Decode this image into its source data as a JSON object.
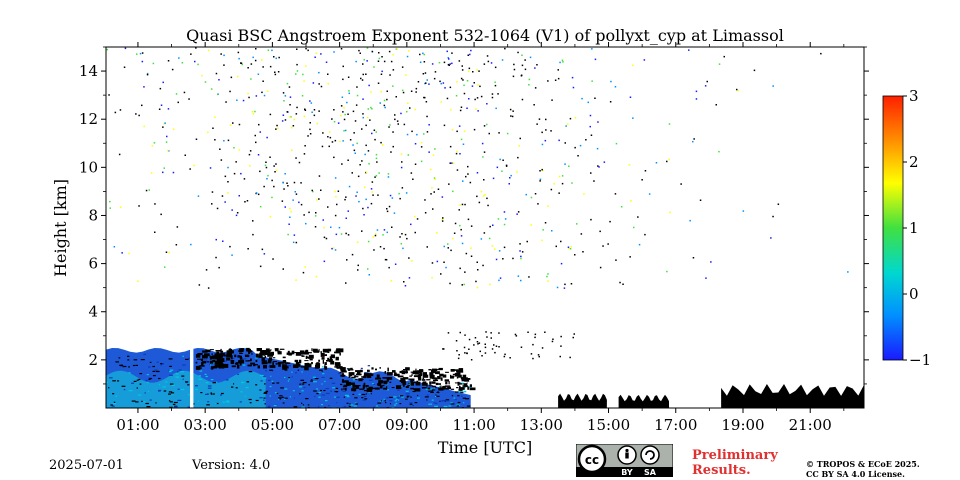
{
  "chart_data": {
    "type": "heatmap",
    "title": "Quasi BSC Angstroem Exponent 532-1064 (V1) of pollyxt_cyp at Limassol",
    "xlabel": "Time [UTC]",
    "ylabel": "Height [km]",
    "xlim_hours": [
      0.05,
      22.6
    ],
    "ylim_km": [
      0,
      15
    ],
    "x_ticks": [
      "01:00",
      "03:00",
      "05:00",
      "07:00",
      "09:00",
      "11:00",
      "13:00",
      "15:00",
      "17:00",
      "19:00",
      "21:00"
    ],
    "x_tick_hours": [
      1,
      3,
      5,
      7,
      9,
      11,
      13,
      15,
      17,
      19,
      21
    ],
    "y_ticks": [
      2,
      4,
      6,
      8,
      10,
      12,
      14
    ],
    "colorbar": {
      "range": [
        -1,
        3
      ],
      "ticks": [
        "3",
        "2",
        "1",
        "0",
        "−1"
      ],
      "tick_values": [
        3,
        2,
        1,
        0,
        -1
      ],
      "colormap": [
        "#1a1aff",
        "#0090ff",
        "#00d8d0",
        "#40e040",
        "#ffff00",
        "#ff9000",
        "#ff2000"
      ]
    },
    "features": {
      "no_data_gap_hours": [
        2.55,
        2.65
      ],
      "boundary_layer_top_km": 2.5,
      "aerosol_layer_end_hour": 10.9,
      "low_cloud_segments": [
        {
          "start": 13.5,
          "end": 14.95,
          "top_km": 0.6
        },
        {
          "start": 15.3,
          "end": 16.8,
          "top_km": 0.55
        },
        {
          "start": 18.35,
          "end": 22.6,
          "top_km": 1.0
        }
      ],
      "noise_region_km": [
        5,
        15
      ]
    }
  },
  "footer": {
    "date": "2025-07-01",
    "version": "Version: 4.0",
    "preliminary_line1": "Preliminary",
    "preliminary_line2": "Results.",
    "copyright_line1": "© TROPOS & ECoE 2025.",
    "copyright_line2": "CC BY SA 4.0 License."
  },
  "license_badge": {
    "left": "cc",
    "middle": "BY",
    "right": "SA"
  }
}
